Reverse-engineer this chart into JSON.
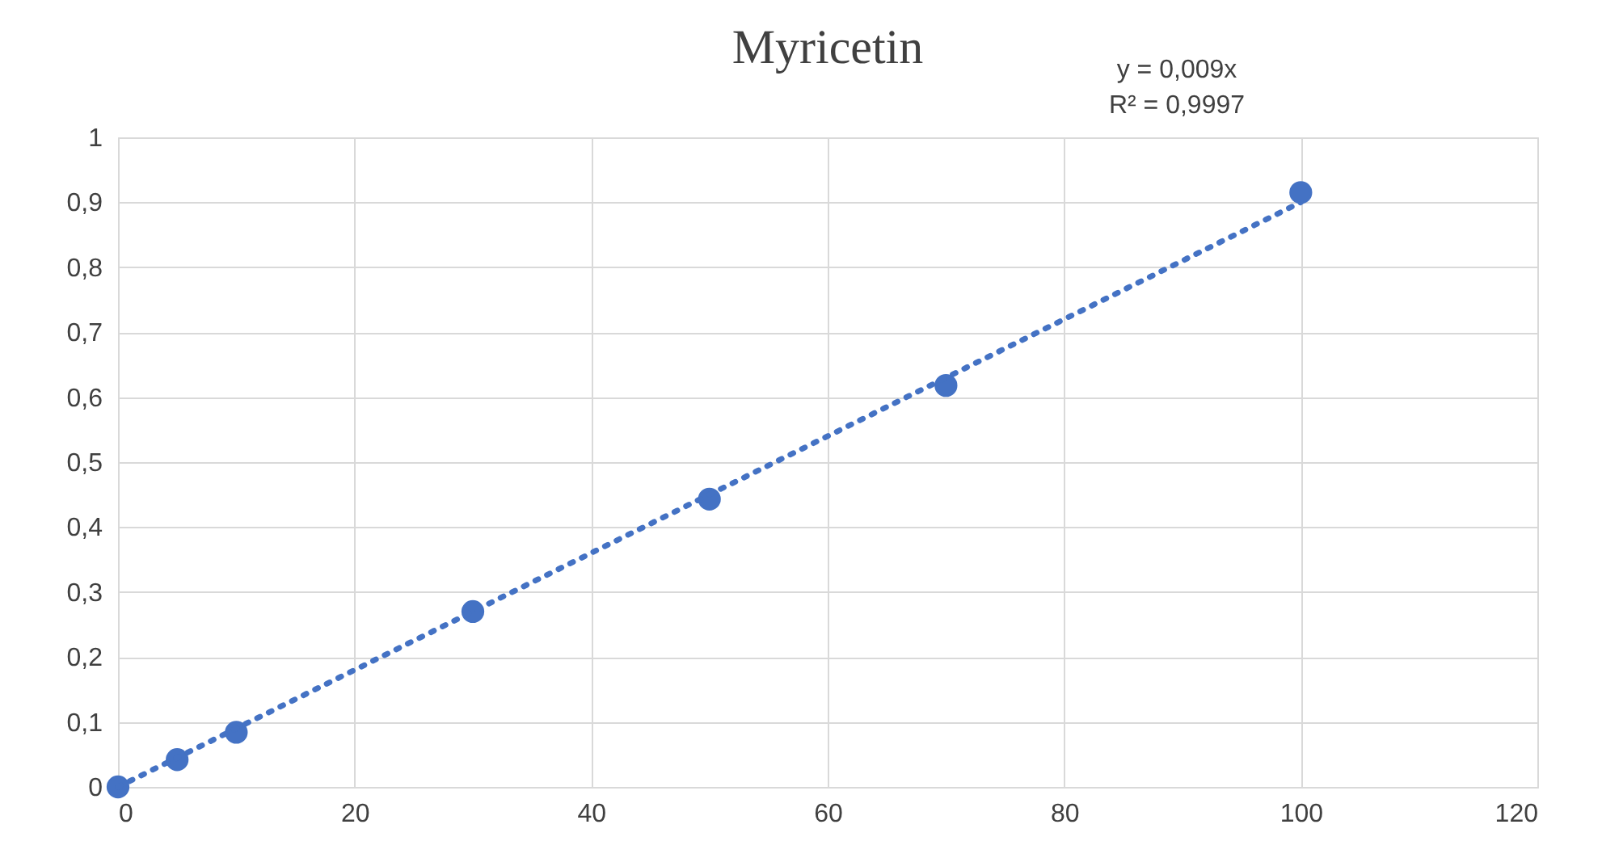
{
  "chart_data": {
    "type": "scatter",
    "title": "Myricetin",
    "annotations": [
      "y = 0,009x",
      "R² = 0,9997"
    ],
    "series": [
      {
        "type": "scatter",
        "color": "#4472c4",
        "marker": "circle",
        "x": [
          0,
          5,
          10,
          30,
          50,
          70,
          100
        ],
        "values": [
          0,
          0.042,
          0.084,
          0.27,
          0.443,
          0.618,
          0.915
        ]
      },
      {
        "type": "line",
        "color": "#4472c4",
        "marker": "none",
        "line_style": "dotted",
        "x": [
          0,
          100
        ],
        "values": [
          0,
          0.9
        ]
      }
    ],
    "xlim": [
      0,
      120
    ],
    "xticks": [
      0,
      20,
      40,
      60,
      80,
      100,
      120
    ],
    "ylim": [
      0,
      1
    ],
    "yticks": [
      {
        "value": 0,
        "label": "0"
      },
      {
        "value": 0.1,
        "label": "0,1"
      },
      {
        "value": 0.2,
        "label": "0,2"
      },
      {
        "value": 0.3,
        "label": "0,3"
      },
      {
        "value": 0.4,
        "label": "0,4"
      },
      {
        "value": 0.5,
        "label": "0,5"
      },
      {
        "value": 0.6,
        "label": "0,6"
      },
      {
        "value": 0.7,
        "label": "0,7"
      },
      {
        "value": 0.8,
        "label": "0,8"
      },
      {
        "value": 0.9,
        "label": "0,9"
      },
      {
        "value": 1,
        "label": "1"
      }
    ],
    "grid": true,
    "legend": false
  }
}
